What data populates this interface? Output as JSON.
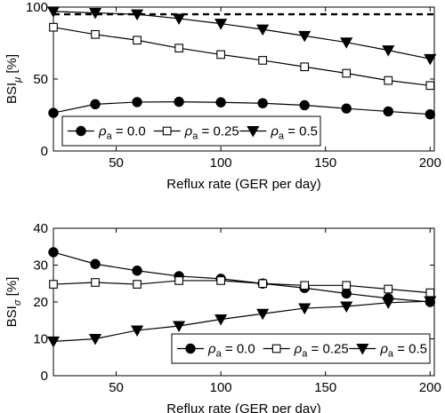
{
  "chart_data": [
    {
      "type": "line",
      "xlabel": "Reflux rate (GER per day)",
      "ylabel_main": "BSI",
      "ylabel_sub": "μ",
      "ylabel_unit": " [%]",
      "xlim": [
        20,
        202
      ],
      "ylim": [
        0,
        100
      ],
      "xticks": [
        50,
        100,
        150,
        200
      ],
      "yticks": [
        0,
        50,
        100
      ],
      "x": [
        20,
        40,
        60,
        80,
        100,
        120,
        140,
        160,
        180,
        200
      ],
      "reference_line": {
        "y": 95,
        "style": "dashed"
      },
      "legend_position": "bottom-left",
      "series": [
        {
          "name": "0.0",
          "marker": "circle-filled",
          "values": [
            26.5,
            32.5,
            34,
            34.2,
            33.8,
            33.2,
            31.8,
            29.5,
            27.5,
            25.5
          ]
        },
        {
          "name": "0.25",
          "marker": "square-open",
          "values": [
            86,
            81,
            77,
            71.5,
            67,
            63,
            58.5,
            54,
            49,
            45.5
          ]
        },
        {
          "name": "0.5",
          "marker": "triangle-down-filled",
          "values": [
            97,
            96,
            95,
            92,
            88.5,
            84.5,
            80,
            75.5,
            70,
            64
          ]
        }
      ]
    },
    {
      "type": "line",
      "xlabel": "Reflux rate (GER per day)",
      "ylabel_main": "BSI",
      "ylabel_sub": "σ",
      "ylabel_unit": " [%]",
      "xlim": [
        20,
        202
      ],
      "ylim": [
        0,
        40
      ],
      "xticks": [
        50,
        100,
        150,
        200
      ],
      "yticks": [
        0,
        10,
        20,
        30,
        40
      ],
      "x": [
        20,
        40,
        60,
        80,
        100,
        120,
        140,
        160,
        180,
        200
      ],
      "legend_position": "bottom-right",
      "series": [
        {
          "name": "0.0",
          "marker": "circle-filled",
          "values": [
            33.5,
            30.3,
            28.5,
            27,
            26.3,
            25,
            23.8,
            22.3,
            21,
            20
          ]
        },
        {
          "name": "0.25",
          "marker": "square-open",
          "values": [
            24.8,
            25.3,
            24.8,
            25.8,
            25.8,
            25,
            24.5,
            24.5,
            23.5,
            22.5
          ]
        },
        {
          "name": "0.5",
          "marker": "triangle-down-filled",
          "values": [
            9.3,
            10,
            12.3,
            13.5,
            15.3,
            16.8,
            18.3,
            18.8,
            19.8,
            20.2
          ]
        }
      ]
    }
  ],
  "legend_symbol": "ρ",
  "legend_subscript": "a",
  "legend_equals": " = "
}
